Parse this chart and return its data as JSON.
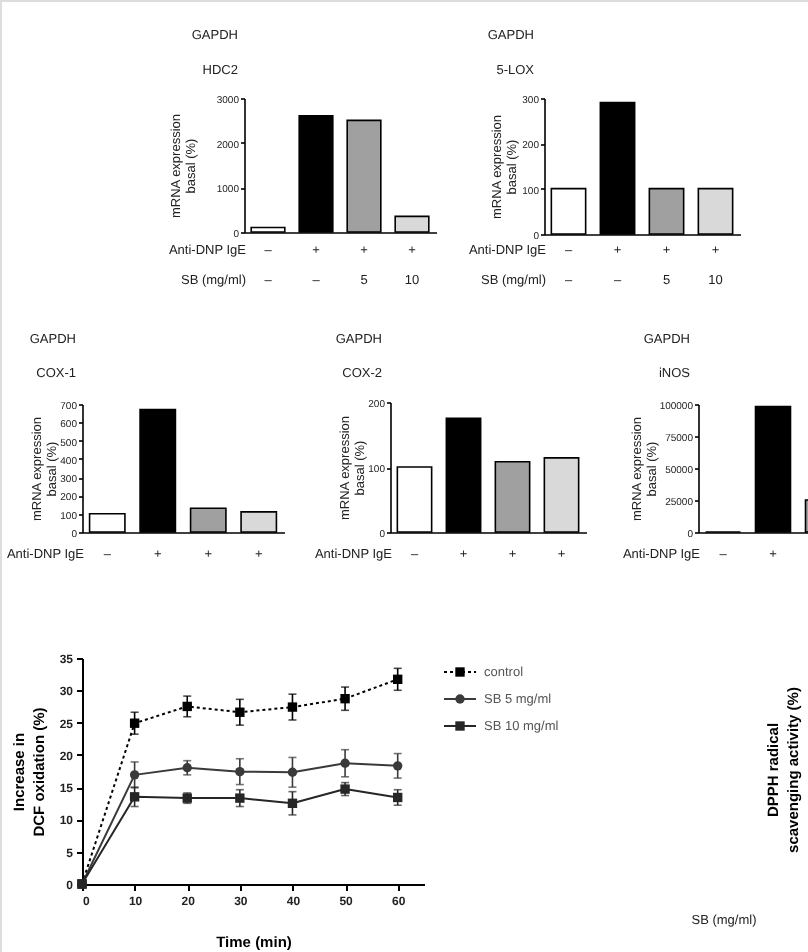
{
  "chart_data": [
    {
      "type": "bar",
      "ylabel": "mRNA expression\nbasal (%)",
      "categories": [
        "–\n–",
        "+\n–",
        "+\n5",
        "+\n10"
      ],
      "values": [
        100,
        2600,
        2500,
        350
      ],
      "colors": [
        "#ffffff",
        "#000000",
        "#a0a0a0",
        "#d9d9d9"
      ],
      "ylim": [
        0,
        3000
      ],
      "yticks": [
        0,
        1000,
        2000,
        3000
      ],
      "annotations": [
        "GAPDH",
        "HDC2",
        "Anti-DNP IgE",
        "SB (mg/ml)"
      ]
    },
    {
      "type": "bar",
      "ylabel": "mRNA expression\nbasal (%)",
      "categories": [
        "–\n–",
        "+\n–",
        "+\n5",
        "+\n10"
      ],
      "values": [
        100,
        290,
        100,
        100
      ],
      "colors": [
        "#ffffff",
        "#000000",
        "#a0a0a0",
        "#d9d9d9"
      ],
      "ylim": [
        0,
        300
      ],
      "yticks": [
        0,
        100,
        200,
        300
      ],
      "annotations": [
        "GAPDH",
        "5-LOX",
        "Anti-DNP IgE",
        "SB (mg/ml)"
      ]
    },
    {
      "type": "bar",
      "ylabel": "mRNA expression\nbasal (%)",
      "categories": [
        "–",
        "+",
        "+",
        "+"
      ],
      "values": [
        100,
        670,
        130,
        110
      ],
      "colors": [
        "#ffffff",
        "#000000",
        "#a0a0a0",
        "#d9d9d9"
      ],
      "ylim": [
        0,
        700
      ],
      "yticks": [
        0,
        100,
        200,
        300,
        400,
        500,
        600,
        700
      ],
      "annotations": [
        "GAPDH",
        "COX-1",
        "Anti-DNP IgE"
      ]
    },
    {
      "type": "bar",
      "ylabel": "mRNA expression\nbasal (%)",
      "categories": [
        "–",
        "+",
        "+",
        "+"
      ],
      "values": [
        100,
        175,
        108,
        114
      ],
      "colors": [
        "#ffffff",
        "#000000",
        "#a0a0a0",
        "#d9d9d9"
      ],
      "ylim": [
        0,
        200
      ],
      "yticks": [
        0,
        100,
        200
      ],
      "annotations": [
        "GAPDH",
        "COX-2",
        "Anti-DNP IgE"
      ]
    },
    {
      "type": "bar",
      "ylabel": "mRNA expression\nbasal (%)",
      "categories": [
        "–",
        "+",
        null,
        null
      ],
      "values": [
        0,
        98000,
        25000,
        null
      ],
      "colors": [
        "#000000",
        "#000000",
        "#a0a0a0",
        null
      ],
      "ylim": [
        0,
        100000
      ],
      "yticks": [
        0,
        25000,
        50000,
        75000,
        100000
      ],
      "annotations": [
        "GAPDH",
        "iNOS",
        "Anti-DNP IgE"
      ]
    },
    {
      "type": "line",
      "xlabel": "Time (min)",
      "ylabel": "Increase in\nDCF oxidation (%)",
      "x": [
        0,
        10,
        20,
        30,
        40,
        50,
        60
      ],
      "xlim": [
        0,
        65
      ],
      "xticks": [
        0,
        10,
        20,
        30,
        40,
        50,
        60
      ],
      "ylim": [
        0,
        35
      ],
      "yticks": [
        0,
        5,
        10,
        15,
        20,
        25,
        30,
        35
      ],
      "legend": "right",
      "series": [
        {
          "name": "control",
          "color": "#000000",
          "marker": "square",
          "line_style": "dotted",
          "values": [
            0,
            24.9,
            27.5,
            26.6,
            27.4,
            28.7,
            31.7
          ],
          "errors": [
            null,
            1.7,
            1.6,
            2.0,
            2.0,
            1.8,
            1.7
          ]
        },
        {
          "name": "SB 5 mg/ml",
          "color": "#3a3a3a",
          "marker": "circle",
          "line_style": "solid",
          "values": [
            0,
            16.9,
            18.0,
            17.4,
            17.3,
            18.7,
            18.3
          ],
          "errors": [
            null,
            2.0,
            1.1,
            2.0,
            2.3,
            2.1,
            1.9
          ]
        },
        {
          "name": "SB 10 mg/ml",
          "color": "#262626",
          "marker": "square",
          "line_style": "solid",
          "values": [
            0,
            13.5,
            13.3,
            13.3,
            12.5,
            14.7,
            13.4
          ],
          "errors": [
            null,
            1.5,
            0.8,
            1.3,
            1.8,
            1.0,
            1.2
          ]
        }
      ]
    },
    {
      "type": "other",
      "xlabel": "SB (mg/ml)",
      "ylabel": "DPPH radical\nscavenging activity (%)"
    }
  ]
}
